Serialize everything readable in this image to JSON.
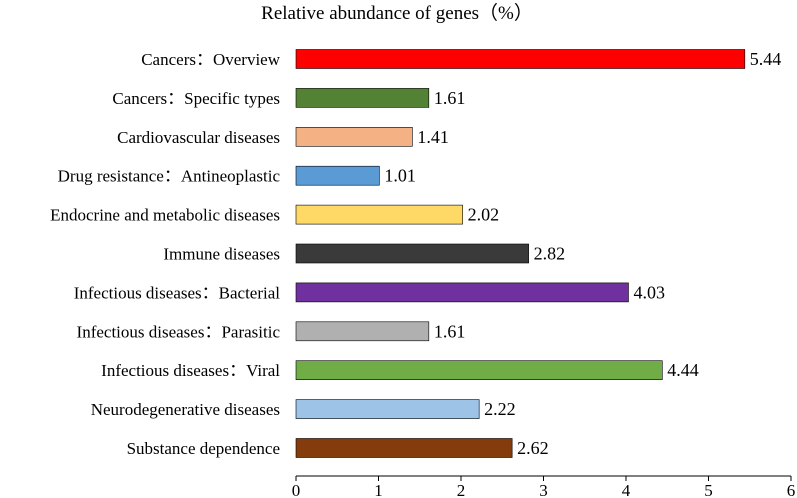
{
  "chart_data": {
    "type": "bar",
    "orientation": "horizontal",
    "title": "Relative abundance of genes（%）",
    "xlabel": "",
    "ylabel": "",
    "xlim": [
      0,
      6
    ],
    "xticks": [
      "0",
      "1",
      "2",
      "3",
      "4",
      "5",
      "6"
    ],
    "grid": false,
    "legend": "none",
    "categories": [
      "Cancers：Overview",
      "Cancers：Specific types",
      "Cardiovascular diseases",
      "Drug resistance：Antineoplastic",
      "Endocrine and metabolic diseases",
      "Immune diseases",
      "Infectious diseases：Bacterial",
      "Infectious diseases：Parasitic",
      "Infectious diseases：Viral",
      "Neurodegenerative diseases",
      "Substance dependence"
    ],
    "values": [
      5.44,
      1.61,
      1.41,
      1.01,
      2.02,
      2.82,
      4.03,
      1.61,
      4.44,
      2.22,
      2.62
    ],
    "value_labels": [
      "5.44",
      "1.61",
      "1.41",
      "1.01",
      "2.02",
      "2.82",
      "4.03",
      "1.61",
      "4.44",
      "2.22",
      "2.62"
    ],
    "colors": [
      "#ff0000",
      "#548235",
      "#f4b183",
      "#5b9bd5",
      "#ffd966",
      "#3a3a3a",
      "#7030a0",
      "#b0b0b0",
      "#70ad47",
      "#9dc3e6",
      "#843c0c"
    ]
  }
}
